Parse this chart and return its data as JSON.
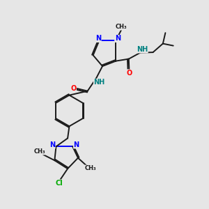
{
  "background_color": "#e6e6e6",
  "bond_color": "#1a1a1a",
  "nitrogen_color": "#0000ff",
  "oxygen_color": "#ff0000",
  "chlorine_color": "#00aa00",
  "nh_color": "#008080",
  "figsize": [
    3.0,
    3.0
  ],
  "dpi": 100,
  "xlim": [
    0,
    10
  ],
  "ylim": [
    0,
    10
  ]
}
